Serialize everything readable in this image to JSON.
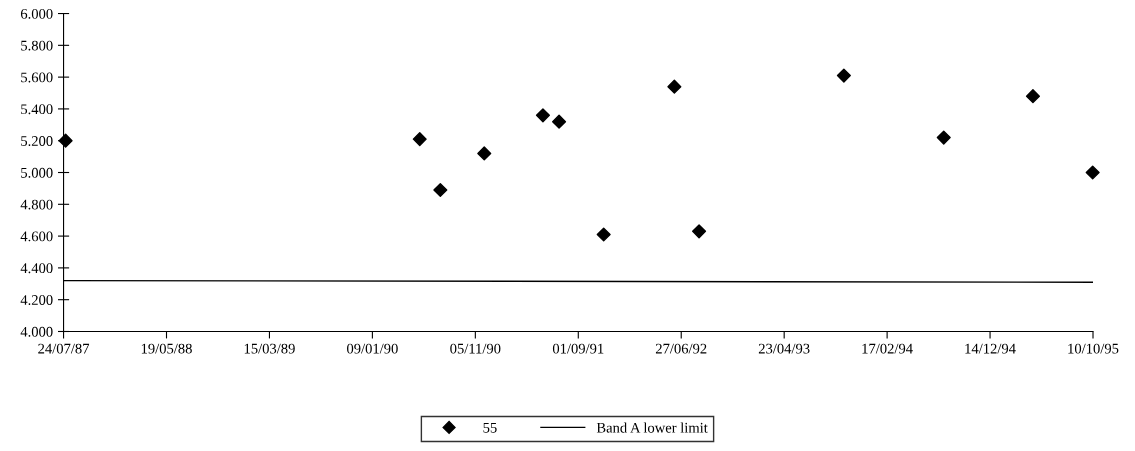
{
  "chart_data": {
    "type": "scatter",
    "series": [
      {
        "name": "55",
        "color": "#000000",
        "marker": "diamond",
        "x": [
          "1987-07-30",
          "1990-05-27",
          "1990-07-26",
          "1990-12-01",
          "1991-05-21",
          "1991-07-07",
          "1991-11-14",
          "1992-06-07",
          "1992-08-18",
          "1993-10-14",
          "1994-08-01",
          "1995-04-18",
          "1995-10-09"
        ],
        "values": [
          5.2,
          5.21,
          4.89,
          5.12,
          5.36,
          5.32,
          4.61,
          5.54,
          4.63,
          5.61,
          5.22,
          5.48,
          5.0
        ]
      },
      {
        "name": "Band A lower limit",
        "type": "line",
        "color": "#000000",
        "marker": "none",
        "line_style": "solid",
        "x": [
          "1987-07-24",
          "1995-10-10"
        ],
        "values": [
          4.32,
          4.31
        ]
      }
    ],
    "xlim": [
      "1987-07-24",
      "1995-10-10"
    ],
    "xticks": [
      {
        "value": "1987-07-24",
        "label": "24/07/87"
      },
      {
        "value": "1988-05-19",
        "label": "19/05/88"
      },
      {
        "value": "1989-03-15",
        "label": "15/03/89"
      },
      {
        "value": "1990-01-09",
        "label": "09/01/90"
      },
      {
        "value": "1990-11-05",
        "label": "05/11/90"
      },
      {
        "value": "1991-09-01",
        "label": "01/09/91"
      },
      {
        "value": "1992-06-27",
        "label": "27/06/92"
      },
      {
        "value": "1993-04-23",
        "label": "23/04/93"
      },
      {
        "value": "1994-02-17",
        "label": "17/02/94"
      },
      {
        "value": "1994-12-14",
        "label": "14/12/94"
      },
      {
        "value": "1995-10-10",
        "label": "10/10/95"
      }
    ],
    "ylim": [
      4.0,
      6.0
    ],
    "yticks": [
      {
        "value": 4.0,
        "label": "4.000"
      },
      {
        "value": 4.2,
        "label": "4.200"
      },
      {
        "value": 4.4,
        "label": "4.400"
      },
      {
        "value": 4.6,
        "label": "4.600"
      },
      {
        "value": 4.8,
        "label": "4.800"
      },
      {
        "value": 5.0,
        "label": "5.000"
      },
      {
        "value": 5.2,
        "label": "5.200"
      },
      {
        "value": 5.4,
        "label": "5.400"
      },
      {
        "value": 5.6,
        "label": "5.600"
      },
      {
        "value": 5.8,
        "label": "5.800"
      },
      {
        "value": 6.0,
        "label": "6.000"
      }
    ],
    "grid": false,
    "legend": "bottom"
  }
}
